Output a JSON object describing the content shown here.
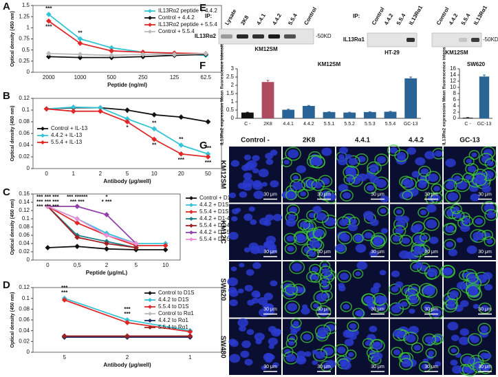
{
  "panel_labels": [
    "A",
    "B",
    "C",
    "D",
    "E",
    "F",
    "G"
  ],
  "chart_data": [
    {
      "type": "line",
      "xlabel": "Peptide (ng/ml)",
      "ylabel": "Optical density (450 nm)",
      "categories": [
        "2000",
        "1000",
        "500",
        "250",
        "125",
        "62.5"
      ],
      "ylim": [
        0,
        1.5
      ],
      "yticks": [
        0,
        0.25,
        0.5,
        0.75,
        1,
        1.25,
        1.5
      ],
      "legend": "upper right",
      "series": [
        {
          "name": "IL13Rα2 peptide + 4.4.2",
          "color": "#35c4d6",
          "values": [
            1.3,
            0.75,
            0.55,
            0.45,
            0.42,
            0.38
          ]
        },
        {
          "name": "Control + 4.4.2",
          "color": "#111111",
          "values": [
            0.35,
            0.33,
            0.33,
            0.35,
            0.38,
            0.4
          ]
        },
        {
          "name": "IL13Rα2 peptide + 5.5.4",
          "color": "#e02828",
          "values": [
            1.15,
            0.65,
            0.48,
            0.45,
            0.43,
            0.42
          ]
        },
        {
          "name": "Control + 5.5.4",
          "color": "#bbbbbb",
          "values": [
            0.42,
            0.4,
            0.38,
            0.4,
            0.4,
            0.42
          ]
        }
      ],
      "annotations": [
        {
          "text": "***",
          "color": "#35c4d6",
          "category": "2000",
          "series": 0,
          "position": "above"
        },
        {
          "text": "***",
          "color": "#e02828",
          "category": "2000",
          "series": 2,
          "position": "below"
        },
        {
          "text": "**",
          "color": "#35c4d6",
          "category": "1000",
          "series": 0,
          "position": "above"
        }
      ]
    },
    {
      "type": "line",
      "xlabel": "Antibody (μg/well)",
      "ylabel": "Optical density (450 nm)",
      "categories": [
        "0",
        "1",
        "2",
        "5",
        "10",
        "20",
        "50"
      ],
      "ylim": [
        0,
        0.12
      ],
      "yticks": [
        0,
        0.02,
        0.04,
        0.06,
        0.08,
        0.1,
        0.12
      ],
      "legend": "center left",
      "series": [
        {
          "name": "Control + IL-13",
          "color": "#111111",
          "values": [
            0.102,
            0.104,
            0.104,
            0.1,
            0.092,
            0.088,
            0.08
          ]
        },
        {
          "name": "4.4.2 + IL-13",
          "color": "#35c4d6",
          "values": [
            0.102,
            0.105,
            0.104,
            0.085,
            0.068,
            0.04,
            0.025
          ]
        },
        {
          "name": "5.5.4 + IL-13",
          "color": "#e02828",
          "values": [
            0.102,
            0.098,
            0.098,
            0.08,
            0.05,
            0.025,
            0.02
          ]
        }
      ],
      "annotations": [
        {
          "text": "*",
          "color": "#35c4d6",
          "category": "5",
          "series": 1,
          "position": "above"
        },
        {
          "text": "*",
          "color": "#e02828",
          "category": "5",
          "series": 2,
          "position": "below"
        },
        {
          "text": "**",
          "color": "#35c4d6",
          "category": "10",
          "series": 1,
          "position": "above"
        },
        {
          "text": "**",
          "color": "#e02828",
          "category": "10",
          "series": 2,
          "position": "below"
        },
        {
          "text": "**",
          "color": "#35c4d6",
          "category": "20",
          "series": 1,
          "position": "above"
        },
        {
          "text": "***",
          "color": "#e02828",
          "category": "20",
          "series": 2,
          "position": "below"
        },
        {
          "text": "***",
          "color": "#35c4d6",
          "category": "50",
          "series": 1,
          "position": "above"
        },
        {
          "text": "***",
          "color": "#e02828",
          "category": "50",
          "series": 2,
          "position": "below"
        }
      ]
    },
    {
      "type": "line",
      "xlabel": "Peptide (μg/mL)",
      "ylabel": "Optical density (450 nm)",
      "categories": [
        "0",
        "0,5",
        "2",
        "5",
        "10"
      ],
      "ylim": [
        0,
        0.16
      ],
      "yticks": [
        0,
        0.02,
        0.04,
        0.06,
        0.08,
        0.1,
        0.12,
        0.14,
        0.16
      ],
      "legend": "right",
      "series": [
        {
          "name": "Control + D1S",
          "color": "#111111",
          "values": [
            0.03,
            0.033,
            0.027,
            0.025,
            0.025
          ]
        },
        {
          "name": "4.4.2 + D1S",
          "color": "#35c4d6",
          "values": [
            0.13,
            0.1,
            0.065,
            0.04,
            0.04
          ]
        },
        {
          "name": "5.5.4 + D1S",
          "color": "#e02828",
          "values": [
            0.13,
            0.09,
            0.06,
            0.035,
            0.035
          ]
        },
        {
          "name": "4.4.2 + D1-4A",
          "color": "#1c7e8c",
          "values": [
            0.13,
            0.06,
            0.045,
            0.03,
            null
          ]
        },
        {
          "name": "5.5.4 + D1-4A",
          "color": "#a02020",
          "values": [
            0.13,
            0.055,
            0.04,
            0.03,
            null
          ]
        },
        {
          "name": "4.4.2 + D1-5A",
          "color": "#9040a8",
          "values": [
            0.13,
            0.13,
            0.11,
            0.04,
            null
          ]
        },
        {
          "name": "5.5.4 + D1-5A",
          "color": "#e890d8",
          "values": [
            0.13,
            0.1,
            0.06,
            0.04,
            null
          ]
        }
      ],
      "annotations": [
        {
          "text": "*** *** ***",
          "color": "#35c4d6",
          "category": "0",
          "series": 0,
          "position": "top"
        },
        {
          "text": "*** *** ***",
          "color": "#a02020",
          "category": "0",
          "series": 0,
          "position": "top"
        },
        {
          "text": "*** *** ***",
          "color": "#9040a8",
          "category": "0",
          "series": 0,
          "position": "top"
        },
        {
          "text": "*** ******",
          "color": "#1c7e8c",
          "category": "0,5",
          "series": 0,
          "position": "top"
        },
        {
          "text": "*** ***",
          "color": "#e02828",
          "category": "0,5",
          "series": 0,
          "position": "top"
        },
        {
          "text": "*",
          "color": "#35c4d6",
          "category": "2",
          "series": 0,
          "position": "top"
        },
        {
          "text": "* ***",
          "color": "#a02020",
          "category": "2",
          "series": 0,
          "position": "top"
        }
      ]
    },
    {
      "type": "line",
      "xlabel": "Antibody (μg/well)",
      "ylabel": "Optical density (450 nm)",
      "categories": [
        "5",
        "2",
        "1"
      ],
      "ylim": [
        0,
        0.12
      ],
      "yticks": [
        0,
        0.02,
        0.04,
        0.06,
        0.08,
        0.1,
        0.12
      ],
      "legend": "upper right",
      "series": [
        {
          "name": "Control to D1S",
          "color": "#111111",
          "values": [
            0.03,
            0.03,
            0.03
          ]
        },
        {
          "name": "4.4.2 to D1S",
          "color": "#35c4d6",
          "values": [
            0.1,
            0.06,
            0.04
          ]
        },
        {
          "name": "5.5.4 to D1S",
          "color": "#e02828",
          "values": [
            0.097,
            0.055,
            0.038
          ]
        },
        {
          "name": "Control to Rα1",
          "color": "#bbbbbb",
          "values": [
            0.03,
            0.03,
            0.03
          ]
        },
        {
          "name": "4.4.2 to Rα1",
          "color": "#1a2a60",
          "values": [
            0.028,
            0.028,
            0.028
          ]
        },
        {
          "name": "5.5.4 to Rα1",
          "color": "#a02020",
          "values": [
            0.03,
            0.03,
            0.03
          ]
        }
      ],
      "annotations": [
        {
          "text": "***",
          "color": "#35c4d6",
          "category": "5",
          "series": 1,
          "position": "above"
        },
        {
          "text": "***",
          "color": "#e02828",
          "category": "5",
          "series": 1,
          "position": "above"
        },
        {
          "text": "***",
          "color": "#35c4d6",
          "category": "2",
          "series": 1,
          "position": "above"
        },
        {
          "text": "***",
          "color": "#e02828",
          "category": "2",
          "series": 1,
          "position": "above"
        }
      ]
    },
    {
      "type": "bar",
      "title": "KM12SM",
      "ylabel": "IL13Rα2 expression Mean fluorescence intensity",
      "categories": [
        "C -",
        "2K8",
        "4.4.1",
        "4.4.2",
        "5.5.1",
        "5.5.2",
        "5.5.3",
        "5.5.4",
        "GC-13"
      ],
      "values": [
        0.35,
        2.2,
        0.52,
        0.75,
        0.38,
        0.35,
        0.38,
        0.4,
        2.42
      ],
      "errors": [
        0.02,
        0.1,
        0.03,
        0.03,
        0.02,
        0.02,
        0.02,
        0.02,
        0.08
      ],
      "colors": [
        "#111111",
        "#b04a60",
        "#2a6496",
        "#2a6496",
        "#2a6496",
        "#2a6496",
        "#2a6496",
        "#2a6496",
        "#2a6496"
      ],
      "ylim": [
        0,
        3
      ],
      "yticks": [
        0,
        0.5,
        1,
        1.5,
        2,
        2.5,
        3
      ]
    },
    {
      "type": "bar",
      "title": "SW620",
      "ylabel": "IL13Rα2 expression Mean fluorescence intensity",
      "categories": [
        "C -",
        "GC-13"
      ],
      "values": [
        0.2,
        13.5
      ],
      "errors": [
        0.05,
        0.5
      ],
      "colors": [
        "#111111",
        "#2a6496"
      ],
      "ylim": [
        0,
        16
      ],
      "yticks": [
        0,
        2,
        4,
        6,
        8,
        10,
        12,
        14,
        16
      ]
    }
  ],
  "blots": {
    "ip_label": "IP:",
    "left": {
      "lanes": [
        "Lysate",
        "2K8",
        "4.4.1",
        "4.4.2",
        "5.5.4",
        "Control"
      ],
      "target": "IL13Rα2",
      "marker": "-50KD",
      "cell_line": "KM12SM"
    },
    "right": [
      {
        "lanes": [
          "Control",
          "4.4.2",
          "5.5.4",
          "IL13Rα1"
        ],
        "cell_line": "HT-29"
      },
      {
        "lanes": [
          "Control",
          "4.4.2",
          "5.5.4",
          "IL13Rα1"
        ],
        "cell_line": "KM12SM"
      }
    ],
    "right_target": "IL13Rα1",
    "right_marker": "-50KD"
  },
  "microscopy": {
    "columns": [
      "Control -",
      "2K8",
      "4.4.1",
      "4.4.2",
      "GC-13"
    ],
    "rows": [
      "KM12SM",
      "KM12C",
      "SW620",
      "SW480"
    ],
    "scale_bar": "30 μm"
  }
}
